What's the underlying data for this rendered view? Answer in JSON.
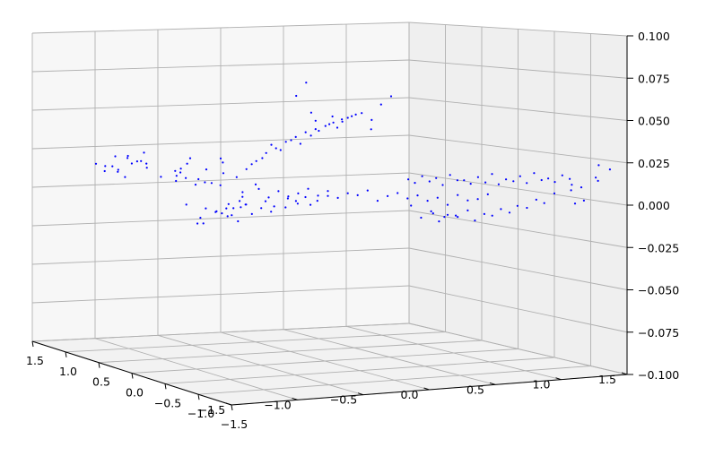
{
  "chart_data": {
    "type": "scatter",
    "projection": "3d",
    "title": "",
    "xlabel": "",
    "ylabel": "",
    "zlabel": "",
    "grid": true,
    "marker_color": "#0000ff",
    "xlim": [
      -1.5,
      1.5
    ],
    "ylim": [
      -1.5,
      1.5
    ],
    "zlim": [
      -0.1,
      0.1
    ],
    "x_ticks": [
      -1.5,
      -1.0,
      -0.5,
      0.0,
      0.5,
      1.0,
      1.5
    ],
    "y_ticks": [
      -1.5,
      -1.0,
      -0.5,
      0.0,
      0.5,
      1.0,
      1.5
    ],
    "z_ticks": [
      -0.1,
      -0.075,
      -0.05,
      -0.025,
      0.0,
      0.025,
      0.05,
      0.075,
      0.1
    ],
    "x_tick_labels": [
      "−1.5",
      "−1.0",
      "−0.5",
      "0.0",
      "0.5",
      "1.0",
      "1.5"
    ],
    "y_tick_labels": [
      "−1.5",
      "−1.0",
      "−0.5",
      "0.0",
      "0.5",
      "1.0",
      "1.5"
    ],
    "z_tick_labels": [
      "−0.100",
      "−0.075",
      "−0.050",
      "−0.025",
      "0.000",
      "0.025",
      "0.050",
      "0.075",
      "0.100"
    ],
    "points": [
      [
        -1.0,
        1.35,
        0.013
      ],
      [
        -1.1,
        1.3,
        0.015
      ],
      [
        -0.85,
        1.3,
        0.018
      ],
      [
        -0.95,
        1.25,
        0.011
      ],
      [
        -0.9,
        1.2,
        0.02
      ],
      [
        -0.8,
        1.25,
        0.016
      ],
      [
        -1.05,
        1.15,
        0.014
      ],
      [
        -0.75,
        1.2,
        0.012
      ],
      [
        -0.85,
        1.1,
        0.017
      ],
      [
        -0.9,
        1.35,
        0.009
      ],
      [
        -0.7,
        1.3,
        0.014
      ],
      [
        -1.0,
        1.2,
        0.02
      ],
      [
        -0.95,
        1.05,
        0.016
      ],
      [
        -0.8,
        1.15,
        0.022
      ],
      [
        -0.88,
        1.28,
        0.006
      ],
      [
        -1.02,
        1.32,
        0.01
      ],
      [
        -0.6,
        1.05,
        0.004
      ],
      [
        -0.55,
        1.0,
        0.006
      ],
      [
        -0.5,
        0.95,
        0.002
      ],
      [
        -0.45,
        1.0,
        0.005
      ],
      [
        -0.65,
        0.95,
        0.008
      ],
      [
        -0.4,
        0.9,
        0.003
      ],
      [
        -0.58,
        1.1,
        0.01
      ],
      [
        -0.48,
        0.85,
        0.004
      ],
      [
        -0.5,
        0.35,
        0.01
      ],
      [
        -0.45,
        0.3,
        0.015
      ],
      [
        -0.4,
        0.25,
        0.02
      ],
      [
        -0.35,
        0.2,
        0.025
      ],
      [
        -0.3,
        0.15,
        0.028
      ],
      [
        -0.25,
        0.1,
        0.032
      ],
      [
        -0.2,
        0.05,
        0.035
      ],
      [
        -0.15,
        0.0,
        0.038
      ],
      [
        -0.1,
        -0.05,
        0.04
      ],
      [
        -0.05,
        -0.1,
        0.042
      ],
      [
        0.0,
        -0.12,
        0.044
      ],
      [
        0.05,
        -0.15,
        0.046
      ],
      [
        0.1,
        -0.2,
        0.048
      ],
      [
        0.15,
        -0.25,
        0.05
      ],
      [
        -0.42,
        0.28,
        0.018
      ],
      [
        -0.32,
        0.18,
        0.03
      ],
      [
        -0.22,
        0.08,
        0.033
      ],
      [
        -0.12,
        -0.02,
        0.036
      ],
      [
        -0.02,
        -0.1,
        0.043
      ],
      [
        0.08,
        -0.18,
        0.047
      ],
      [
        -0.38,
        0.2,
        0.022
      ],
      [
        -0.28,
        0.12,
        0.027
      ],
      [
        -0.18,
        0.02,
        0.031
      ],
      [
        -0.08,
        -0.06,
        0.039
      ],
      [
        0.02,
        -0.14,
        0.041
      ],
      [
        0.12,
        -0.22,
        0.049
      ],
      [
        0.2,
        -0.3,
        0.046
      ],
      [
        0.25,
        -0.2,
        0.04
      ],
      [
        0.3,
        -0.25,
        0.055
      ],
      [
        0.35,
        -0.3,
        0.06
      ],
      [
        -0.6,
        0.4,
        0.005
      ],
      [
        -0.55,
        0.45,
        0.012
      ],
      [
        -0.5,
        0.5,
        -0.01
      ],
      [
        -0.45,
        0.4,
        -0.005
      ],
      [
        -0.4,
        0.45,
        0.0
      ],
      [
        -0.35,
        0.5,
        -0.008
      ],
      [
        -0.3,
        0.4,
        0.002
      ],
      [
        -0.25,
        0.35,
        -0.003
      ],
      [
        -0.2,
        0.3,
        0.001
      ],
      [
        -0.15,
        0.25,
        -0.002
      ],
      [
        -0.1,
        0.2,
        0.0
      ],
      [
        -0.05,
        0.15,
        0.003
      ],
      [
        0.0,
        0.1,
        -0.001
      ],
      [
        0.05,
        0.05,
        0.002
      ],
      [
        0.1,
        0.0,
        -0.002
      ],
      [
        0.15,
        -0.05,
        0.001
      ],
      [
        0.2,
        -0.1,
        0.0
      ],
      [
        0.25,
        -0.15,
        0.003
      ],
      [
        -0.55,
        0.55,
        -0.012
      ],
      [
        -0.48,
        0.52,
        -0.015
      ],
      [
        -0.42,
        0.48,
        -0.018
      ],
      [
        -0.36,
        0.55,
        -0.01
      ],
      [
        -0.3,
        0.5,
        -0.014
      ],
      [
        -0.22,
        0.45,
        -0.006
      ],
      [
        -0.18,
        0.4,
        -0.009
      ],
      [
        -0.1,
        0.35,
        -0.004
      ],
      [
        -0.05,
        0.3,
        -0.007
      ],
      [
        0.0,
        0.28,
        -0.003
      ],
      [
        0.06,
        0.22,
        -0.005
      ],
      [
        0.12,
        0.18,
        -0.002
      ],
      [
        -0.65,
        0.6,
        -0.016
      ],
      [
        -0.7,
        0.55,
        -0.019
      ],
      [
        -0.6,
        0.65,
        -0.02
      ],
      [
        -0.52,
        0.62,
        -0.013
      ],
      [
        -0.44,
        0.58,
        -0.008
      ],
      [
        -0.38,
        0.62,
        -0.011
      ],
      [
        -0.32,
        0.6,
        -0.004
      ],
      [
        -0.26,
        0.52,
        0.004
      ],
      [
        0.3,
        -0.2,
        -0.003
      ],
      [
        0.35,
        -0.25,
        0.0
      ],
      [
        0.4,
        -0.3,
        0.002
      ],
      [
        0.45,
        -0.35,
        -0.001
      ],
      [
        0.5,
        -0.4,
        0.001
      ],
      [
        0.55,
        -0.45,
        -0.002
      ],
      [
        0.6,
        -0.5,
        0.0
      ],
      [
        0.65,
        -0.55,
        -0.004
      ],
      [
        0.7,
        -0.6,
        0.002
      ],
      [
        0.75,
        -0.65,
        -0.001
      ],
      [
        0.8,
        -0.7,
        0.0
      ],
      [
        0.85,
        -0.75,
        0.003
      ],
      [
        0.32,
        -0.6,
        0.012
      ],
      [
        0.4,
        -0.65,
        0.014
      ],
      [
        0.48,
        -0.7,
        0.013
      ],
      [
        0.56,
        -0.75,
        0.015
      ],
      [
        0.64,
        -0.8,
        0.012
      ],
      [
        0.72,
        -0.85,
        0.014
      ],
      [
        0.8,
        -0.9,
        0.016
      ],
      [
        0.88,
        -0.95,
        0.013
      ],
      [
        0.96,
        -1.0,
        0.015
      ],
      [
        1.04,
        -1.05,
        0.017
      ],
      [
        1.12,
        -1.1,
        0.014
      ],
      [
        1.2,
        -1.15,
        0.016
      ],
      [
        0.36,
        -0.62,
        0.01
      ],
      [
        0.44,
        -0.68,
        0.011
      ],
      [
        0.52,
        -0.72,
        0.009
      ],
      [
        0.6,
        -0.78,
        0.012
      ],
      [
        0.68,
        -0.82,
        0.01
      ],
      [
        0.76,
        -0.88,
        0.011
      ],
      [
        0.84,
        -0.92,
        0.01
      ],
      [
        0.92,
        -0.98,
        0.012
      ],
      [
        1.0,
        -1.02,
        0.011
      ],
      [
        1.08,
        -1.08,
        0.013
      ],
      [
        1.16,
        -1.12,
        0.012
      ],
      [
        1.24,
        -1.18,
        0.014
      ],
      [
        0.45,
        -0.4,
        -0.005
      ],
      [
        0.55,
        -0.5,
        -0.008
      ],
      [
        0.65,
        -0.55,
        -0.01
      ],
      [
        0.75,
        -0.65,
        -0.007
      ],
      [
        0.85,
        -0.7,
        -0.009
      ],
      [
        0.95,
        -0.75,
        -0.006
      ],
      [
        1.05,
        -0.8,
        -0.004
      ],
      [
        1.15,
        -0.88,
        0.0
      ],
      [
        1.25,
        -0.95,
        0.004
      ],
      [
        1.35,
        -1.0,
        0.006
      ],
      [
        1.4,
        -1.05,
        0.008
      ],
      [
        1.3,
        -1.1,
        0.01
      ],
      [
        0.5,
        -0.45,
        -0.012
      ],
      [
        0.6,
        -0.52,
        -0.014
      ],
      [
        0.7,
        -0.6,
        -0.011
      ],
      [
        0.8,
        -0.66,
        -0.013
      ],
      [
        0.9,
        -0.72,
        -0.01
      ],
      [
        1.0,
        -0.78,
        -0.008
      ],
      [
        1.1,
        -0.84,
        -0.005
      ],
      [
        1.2,
        -0.9,
        -0.002
      ],
      [
        0.62,
        -0.4,
        -0.01
      ],
      [
        0.68,
        -0.45,
        -0.012
      ],
      [
        0.74,
        -0.5,
        -0.011
      ],
      [
        1.45,
        -1.2,
        0.022
      ],
      [
        1.4,
        -1.25,
        0.015
      ],
      [
        1.5,
        -1.1,
        0.012
      ],
      [
        1.48,
        -1.3,
        0.02
      ],
      [
        1.42,
        -1.05,
        0.0
      ],
      [
        1.38,
        -1.0,
        -0.002
      ],
      [
        -0.25,
        -0.05,
        0.06
      ],
      [
        -0.2,
        -0.1,
        0.068
      ],
      [
        -0.15,
        -0.08,
        0.05
      ],
      [
        -0.1,
        -0.05,
        0.045
      ],
      [
        -0.05,
        -0.2,
        0.048
      ],
      [
        0.0,
        -0.25,
        0.045
      ],
      [
        -0.7,
        0.8,
        0.011
      ],
      [
        -0.75,
        0.7,
        0.014
      ],
      [
        -0.8,
        0.9,
        0.008
      ],
      [
        -0.65,
        0.75,
        0.02
      ],
      [
        -0.62,
        0.85,
        0.016
      ],
      [
        -0.55,
        0.7,
        0.013
      ],
      [
        -0.48,
        0.62,
        0.02
      ],
      [
        -0.42,
        0.7,
        0.017
      ],
      [
        -0.6,
        0.9,
        -0.01
      ],
      [
        -0.5,
        0.8,
        -0.012
      ],
      [
        -0.4,
        0.75,
        -0.015
      ],
      [
        -0.35,
        0.7,
        -0.016
      ],
      [
        -0.28,
        0.62,
        -0.009
      ],
      [
        -0.2,
        0.55,
        -0.011
      ],
      [
        -0.15,
        0.5,
        -0.013
      ],
      [
        -0.08,
        0.42,
        -0.01
      ],
      [
        -0.02,
        0.38,
        -0.006
      ],
      [
        0.05,
        0.3,
        -0.008
      ]
    ]
  }
}
